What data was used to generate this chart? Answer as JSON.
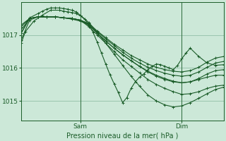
{
  "bg_color": "#cce8d8",
  "plot_bg_color": "#cce8d8",
  "grid_color": "#9ac4ae",
  "line_color": "#1a5c28",
  "marker_color": "#1a5c28",
  "xlabel_text": "Pression niveau de la mer( hPa )",
  "yticks": [
    1015,
    1016,
    1017
  ],
  "ylim": [
    1014.4,
    1018.0
  ],
  "xlim": [
    0,
    48
  ],
  "sam_x": 14,
  "dim_x": 38,
  "series": [
    {
      "x": [
        0,
        2,
        4,
        6,
        8,
        10,
        12,
        14,
        16,
        18,
        20,
        22,
        24,
        26,
        28,
        30,
        32,
        34,
        36,
        38,
        40,
        42,
        44,
        46,
        48
      ],
      "y": [
        1017.25,
        1017.5,
        1017.55,
        1017.55,
        1017.55,
        1017.52,
        1017.5,
        1017.45,
        1017.25,
        1017.0,
        1016.75,
        1016.5,
        1016.25,
        1016.05,
        1015.85,
        1015.65,
        1015.5,
        1015.38,
        1015.28,
        1015.2,
        1015.22,
        1015.28,
        1015.38,
        1015.45,
        1015.48
      ]
    },
    {
      "x": [
        0,
        2,
        4,
        6,
        8,
        10,
        12,
        14,
        16,
        18,
        20,
        22,
        24,
        26,
        28,
        30,
        32,
        34,
        36,
        38,
        40,
        42,
        44,
        46,
        48
      ],
      "y": [
        1017.3,
        1017.5,
        1017.55,
        1017.55,
        1017.55,
        1017.52,
        1017.5,
        1017.45,
        1017.3,
        1017.05,
        1016.82,
        1016.6,
        1016.4,
        1016.22,
        1016.05,
        1015.9,
        1015.78,
        1015.68,
        1015.6,
        1015.55,
        1015.58,
        1015.65,
        1015.72,
        1015.78,
        1015.78
      ]
    },
    {
      "x": [
        0,
        2,
        4,
        6,
        8,
        10,
        12,
        14,
        16,
        18,
        20,
        22,
        24,
        26,
        28,
        30,
        32,
        34,
        36,
        38,
        40,
        42,
        44,
        46,
        48
      ],
      "y": [
        1017.15,
        1017.5,
        1017.55,
        1017.55,
        1017.55,
        1017.52,
        1017.5,
        1017.45,
        1017.32,
        1017.1,
        1016.88,
        1016.68,
        1016.48,
        1016.3,
        1016.15,
        1016.02,
        1015.92,
        1015.84,
        1015.78,
        1015.75,
        1015.78,
        1015.88,
        1016.02,
        1016.15,
        1016.2
      ]
    },
    {
      "x": [
        0,
        2,
        4,
        6,
        8,
        10,
        12,
        14,
        16,
        18,
        20,
        22,
        24,
        26,
        28,
        30,
        32,
        34,
        36,
        38,
        40,
        42,
        44,
        46,
        48
      ],
      "y": [
        1017.05,
        1017.5,
        1017.55,
        1017.55,
        1017.55,
        1017.52,
        1017.5,
        1017.45,
        1017.35,
        1017.12,
        1016.92,
        1016.72,
        1016.55,
        1016.38,
        1016.25,
        1016.12,
        1016.02,
        1015.95,
        1015.9,
        1015.88,
        1015.92,
        1016.02,
        1016.18,
        1016.3,
        1016.35
      ]
    },
    {
      "x": [
        0,
        2,
        4,
        6,
        8,
        10,
        12,
        14,
        16,
        18,
        20,
        22,
        24,
        26,
        28,
        30,
        32,
        34,
        36,
        38,
        40,
        42,
        44,
        46,
        48
      ],
      "y": [
        1016.85,
        1017.45,
        1017.55,
        1017.55,
        1017.55,
        1017.52,
        1017.48,
        1017.42,
        1017.3,
        1017.05,
        1016.82,
        1016.6,
        1016.4,
        1016.22,
        1016.05,
        1015.88,
        1015.75,
        1015.65,
        1015.58,
        1015.55,
        1015.58,
        1015.68,
        1015.82,
        1015.92,
        1015.95
      ]
    },
    {
      "x": [
        0,
        1,
        3,
        5,
        7,
        9,
        10,
        11,
        12,
        13,
        14,
        15,
        16,
        17,
        18,
        19,
        20,
        21,
        22,
        23,
        24,
        25,
        26,
        27,
        28,
        29,
        30,
        31,
        32,
        33,
        34,
        35,
        36,
        37,
        38,
        39,
        40,
        42,
        44,
        46,
        48
      ],
      "y": [
        1016.75,
        1017.1,
        1017.42,
        1017.6,
        1017.75,
        1017.75,
        1017.72,
        1017.7,
        1017.68,
        1017.65,
        1017.58,
        1017.48,
        1017.32,
        1017.08,
        1016.78,
        1016.45,
        1016.12,
        1015.8,
        1015.52,
        1015.25,
        1014.95,
        1015.1,
        1015.38,
        1015.58,
        1015.72,
        1015.82,
        1015.95,
        1016.05,
        1016.12,
        1016.1,
        1016.05,
        1016.0,
        1015.95,
        1016.08,
        1016.28,
        1016.45,
        1016.6,
        1016.35,
        1016.15,
        1016.08,
        1016.1
      ]
    },
    {
      "x": [
        0,
        2,
        4,
        5,
        6,
        7,
        8,
        9,
        10,
        11,
        12,
        13,
        14,
        16,
        18,
        20,
        22,
        24,
        26,
        28,
        30,
        32,
        34,
        36,
        38,
        40,
        42,
        44,
        46,
        48
      ],
      "y": [
        1017.05,
        1017.52,
        1017.65,
        1017.72,
        1017.78,
        1017.82,
        1017.82,
        1017.82,
        1017.8,
        1017.78,
        1017.75,
        1017.7,
        1017.6,
        1017.38,
        1017.08,
        1016.75,
        1016.42,
        1016.08,
        1015.75,
        1015.45,
        1015.18,
        1015.0,
        1014.88,
        1014.82,
        1014.85,
        1014.95,
        1015.08,
        1015.22,
        1015.35,
        1015.42
      ]
    }
  ]
}
